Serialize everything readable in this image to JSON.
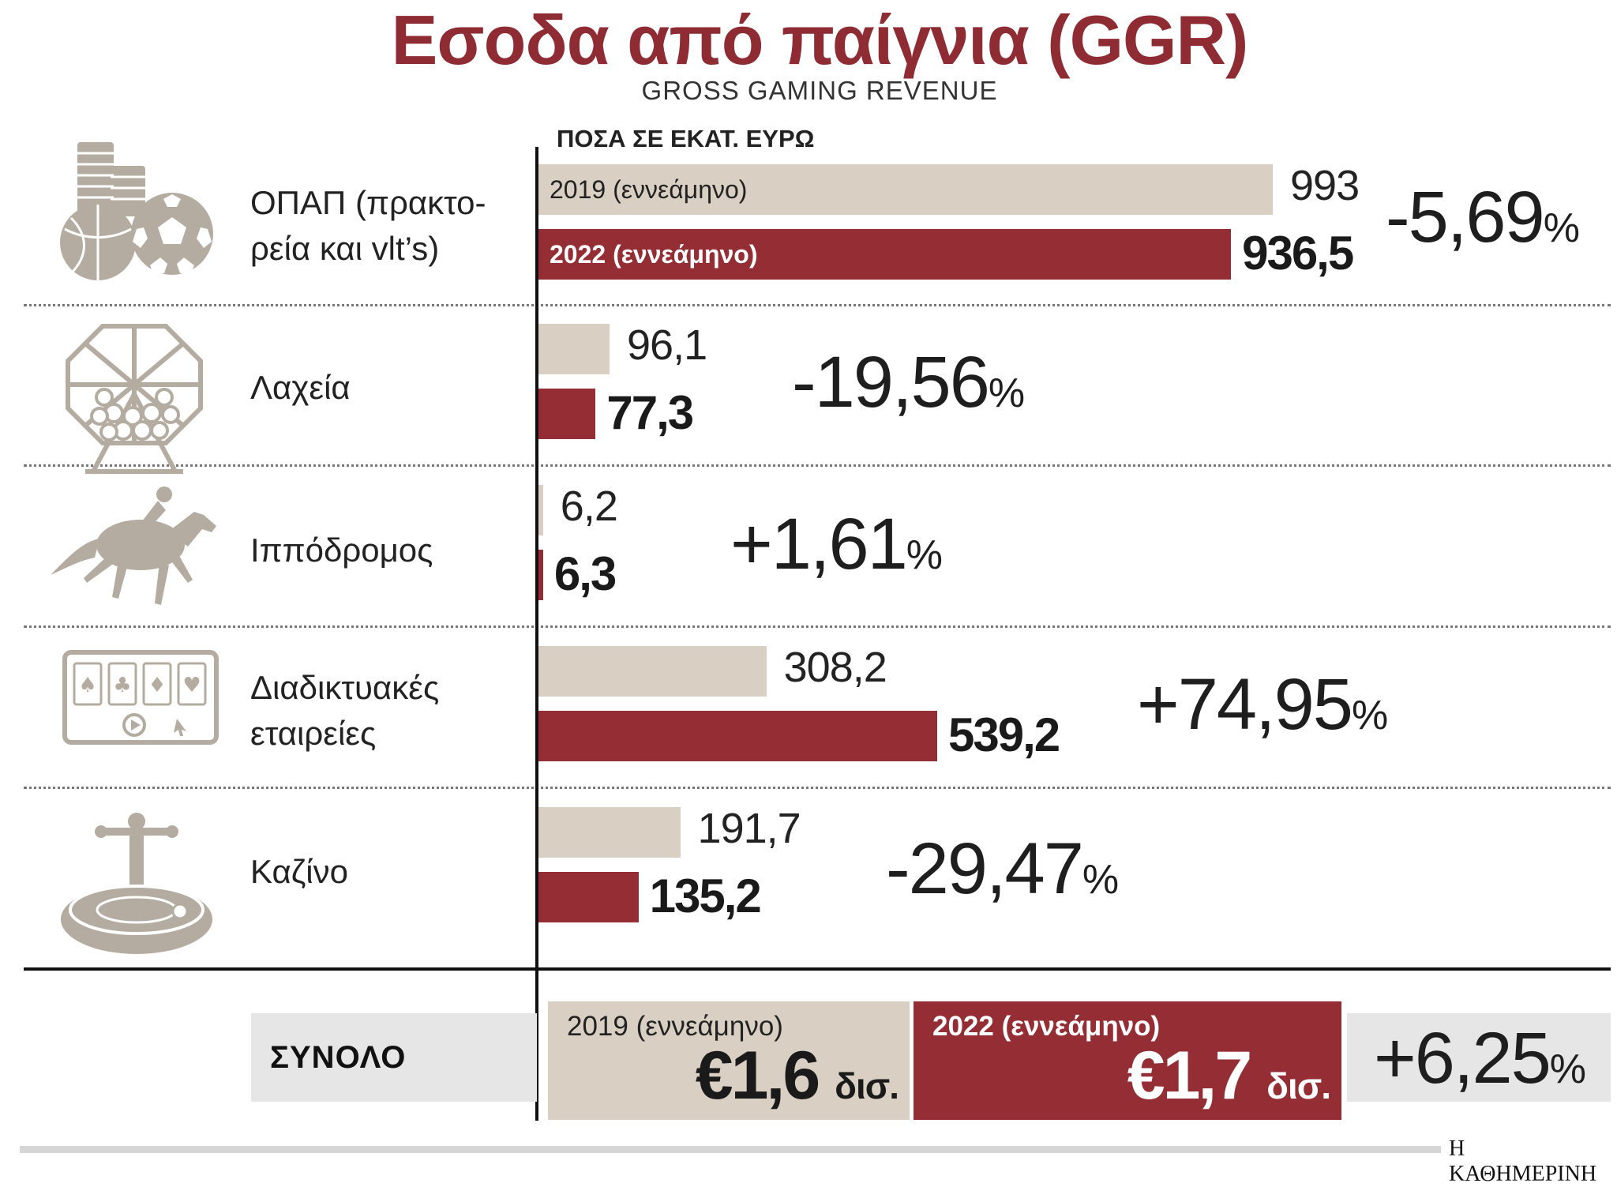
{
  "title": "Εσοδα από παίγνια (GGR)",
  "subtitle": "GROSS GAMING REVENUE",
  "units_label": "ΠΟΣΑ ΣΕ ΕΚΑΤ. ΕΥΡΩ",
  "series_labels": {
    "s2019": "2019 (εννεάμηνο)",
    "s2022": "2022 (εννεάμηνο)"
  },
  "categories": [
    {
      "icon": "lottery-chips-balls-icon",
      "label_lines": [
        "ΟΠΑΠ (πρακτο-",
        "ρεία και vlt’s)"
      ],
      "v2019": "993",
      "v2022": "936,5",
      "change": "-5,69",
      "pct_sign": "%"
    },
    {
      "icon": "lottery-drum-icon",
      "label_lines": [
        "Λαχεία"
      ],
      "v2019": "96,1",
      "v2022": "77,3",
      "change": "-19,56",
      "pct_sign": "%"
    },
    {
      "icon": "racehorse-jockey-icon",
      "label_lines": [
        "Ιππόδρομος"
      ],
      "v2019": "6,2",
      "v2022": "6,3",
      "change": "+1,61",
      "pct_sign": "%"
    },
    {
      "icon": "online-cards-screen-icon",
      "label_lines": [
        "Διαδικτυακές",
        "εταιρείες"
      ],
      "v2019": "308,2",
      "v2022": "539,2",
      "change": "+74,95",
      "pct_sign": "%"
    },
    {
      "icon": "roulette-wheel-icon",
      "label_lines": [
        "Καζίνο"
      ],
      "v2019": "191,7",
      "v2022": "135,2",
      "change": "-29,47",
      "pct_sign": "%"
    }
  ],
  "total": {
    "label": "ΣΥΝΟΛΟ",
    "s2019_label": "2019 (εννεάμηνο)",
    "s2019_value": "€1,6",
    "s2022_label": "2022 (εννεάμηνο)",
    "s2022_value": "€1,7",
    "unit": "δισ.",
    "change": "+6,25",
    "pct_sign": "%"
  },
  "source": "Η ΚΑΘΗΜΕΡΙΝΗ",
  "colors": {
    "s2019": "#d9cfc3",
    "s2022": "#952d34",
    "title": "#8e2b33",
    "icon": "#b5aca1"
  },
  "chart_data": {
    "type": "bar",
    "orientation": "horizontal",
    "title": "Εσοδα από παίγνια (GGR)",
    "subtitle": "GROSS GAMING REVENUE",
    "unit_note": "ΠΟΣΑ ΣΕ ΕΚΑΤ. ΕΥΡΩ",
    "categories": [
      "ΟΠΑΠ (πρακτορεία και vlt’s)",
      "Λαχεία",
      "Ιππόδρομος",
      "Διαδικτυακές εταιρείες",
      "Καζίνο"
    ],
    "series": [
      {
        "name": "2019 (εννεάμηνο)",
        "values": [
          993,
          96.1,
          6.2,
          308.2,
          191.7
        ]
      },
      {
        "name": "2022 (εννεάμηνο)",
        "values": [
          936.5,
          77.3,
          6.3,
          539.2,
          135.2
        ]
      }
    ],
    "percent_change": [
      -5.69,
      -19.56,
      1.61,
      74.95,
      -29.47
    ],
    "totals": {
      "2019 (εννεάμηνο)": 1.6,
      "2022 (εννεάμηνο)": 1.7,
      "unit": "δισ.",
      "percent_change": 6.25
    },
    "xlim": [
      0,
      993
    ],
    "grid": false,
    "legend": "inside-bars"
  }
}
